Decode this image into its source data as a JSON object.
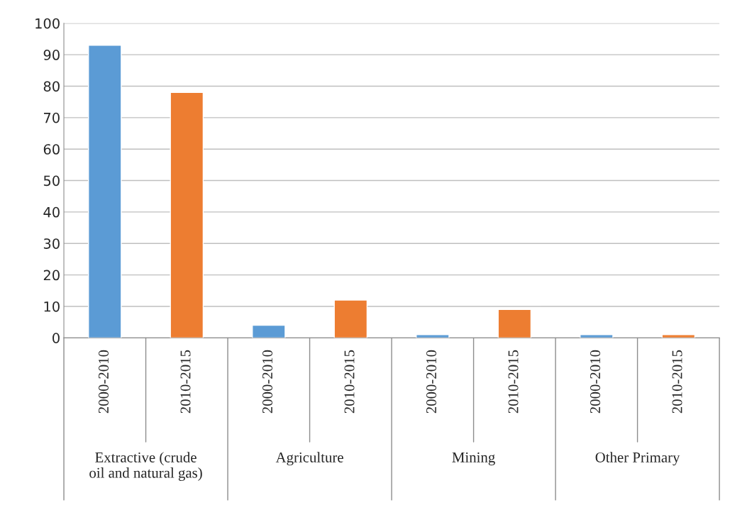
{
  "chart_data": {
    "type": "bar",
    "categories": [
      "2000-2010",
      "2010-2015",
      "2000-2010",
      "2010-2015",
      "2000-2010",
      "2010-2015",
      "2000-2010",
      "2010-2015"
    ],
    "values": [
      93,
      78,
      4,
      12,
      1,
      9,
      1,
      1
    ],
    "colors": [
      "#5b9bd5",
      "#ed7d31",
      "#5b9bd5",
      "#ed7d31",
      "#5b9bd5",
      "#ed7d31",
      "#5b9bd5",
      "#ed7d31"
    ],
    "ylim": [
      0,
      100
    ],
    "yticks": [
      0,
      10,
      20,
      30,
      40,
      50,
      60,
      70,
      80,
      90,
      100
    ],
    "grid": "y",
    "legend": false,
    "annotations": [
      "Extractive (crude\noil and natural gas)",
      "Agriculture",
      "Mining",
      "Other Primary"
    ]
  }
}
